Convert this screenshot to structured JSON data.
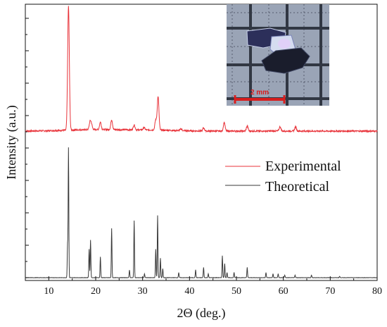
{
  "chart_data": {
    "type": "line",
    "xlabel": "2Θ (deg.)",
    "ylabel": "Intensity (a.u.)",
    "xlim": [
      5,
      80
    ],
    "x_ticks": [
      10,
      20,
      30,
      40,
      50,
      60,
      70,
      80
    ],
    "grid": false,
    "legend_position": "right-middle",
    "series": [
      {
        "name": "Experimental",
        "color": "#e8333a",
        "peaks": [
          [
            14.2,
            100
          ],
          [
            18.8,
            6
          ],
          [
            19.1,
            4
          ],
          [
            21.0,
            6
          ],
          [
            23.4,
            8
          ],
          [
            28.2,
            4
          ],
          [
            30.3,
            2
          ],
          [
            32.8,
            8
          ],
          [
            33.3,
            27
          ],
          [
            38.2,
            1.5
          ],
          [
            43.0,
            2.5
          ],
          [
            47.4,
            7
          ],
          [
            52.3,
            4
          ],
          [
            59.3,
            3.5
          ],
          [
            62.6,
            3.5
          ]
        ]
      },
      {
        "name": "Theoretical",
        "color": "#3a3a3a",
        "peaks": [
          [
            14.0,
            25
          ],
          [
            14.2,
            100
          ],
          [
            18.6,
            22
          ],
          [
            18.9,
            29
          ],
          [
            21.0,
            16
          ],
          [
            23.4,
            38
          ],
          [
            27.2,
            6
          ],
          [
            28.2,
            44
          ],
          [
            30.4,
            3
          ],
          [
            32.8,
            22
          ],
          [
            33.2,
            48
          ],
          [
            33.8,
            15
          ],
          [
            34.3,
            7
          ],
          [
            37.7,
            4
          ],
          [
            41.3,
            6
          ],
          [
            43.0,
            8
          ],
          [
            44.0,
            3
          ],
          [
            47.0,
            17
          ],
          [
            47.5,
            11
          ],
          [
            48.0,
            4
          ],
          [
            49.5,
            4
          ],
          [
            52.3,
            8
          ],
          [
            56.3,
            4
          ],
          [
            57.8,
            3
          ],
          [
            58.9,
            3
          ],
          [
            60.3,
            2
          ],
          [
            62.5,
            2
          ],
          [
            66.0,
            2
          ],
          [
            72.0,
            1
          ]
        ]
      }
    ]
  },
  "inset": {
    "scale_label": "2 mm",
    "image_description_icon": "crystal-photo"
  }
}
